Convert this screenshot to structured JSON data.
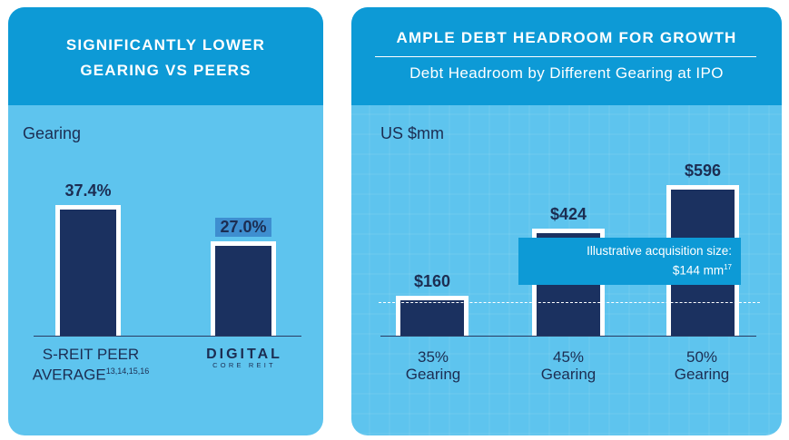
{
  "left_panel": {
    "title_line1": "SIGNIFICANTLY LOWER",
    "title_line2": "GEARING VS PEERS",
    "axis_label": "Gearing",
    "highlight_color": "#3e8ed0",
    "bars": [
      {
        "value_label": "37.4%",
        "category_line1": "S-REIT PEER",
        "category_line2": "AVERAGE",
        "category_superscript": "13,14,15,16"
      },
      {
        "value_label": "27.0%",
        "logo_main": "DIGITAL",
        "logo_sub": "CORE REIT"
      }
    ]
  },
  "right_panel": {
    "title": "AMPLE DEBT HEADROOM FOR GROWTH",
    "subtitle": "Debt Headroom by Different Gearing at IPO",
    "axis_label": "US $mm",
    "bars": [
      {
        "value_label": "$160",
        "category_line1": "35%",
        "category_line2": "Gearing"
      },
      {
        "value_label": "$424",
        "category_line1": "45%",
        "category_line2": "Gearing"
      },
      {
        "value_label": "$596",
        "category_line1": "50%",
        "category_line2": "Gearing"
      }
    ],
    "callout_line1": "Illustrative acquisition size:",
    "callout_line2": "$144 mm",
    "callout_superscript": "17"
  },
  "colors": {
    "panel_bg": "#5ec4ee",
    "header_bg": "#0d9ad6",
    "bar_fill": "#1b3160",
    "bar_outline": "#ffffff",
    "text": "#1c2d52"
  },
  "chart_data": [
    {
      "type": "bar",
      "title": "SIGNIFICANTLY LOWER GEARING VS PEERS",
      "ylabel": "Gearing",
      "categories": [
        "S-REIT PEER AVERAGE",
        "DIGITAL CORE REIT"
      ],
      "values": [
        37.4,
        27.0
      ],
      "value_labels": [
        "37.4%",
        "27.0%"
      ],
      "ylim": [
        0,
        40
      ],
      "grid": false,
      "legend": "none"
    },
    {
      "type": "bar",
      "title": "AMPLE DEBT HEADROOM FOR GROWTH",
      "subtitle": "Debt Headroom by Different Gearing at IPO",
      "ylabel": "US $mm",
      "categories": [
        "35% Gearing",
        "45% Gearing",
        "50% Gearing"
      ],
      "values": [
        160,
        424,
        596
      ],
      "value_labels": [
        "$160",
        "$424",
        "$596"
      ],
      "reference_line": {
        "value": 144,
        "label": "Illustrative acquisition size: $144 mm"
      },
      "ylim": [
        0,
        600
      ],
      "grid": false,
      "legend": "none"
    }
  ]
}
